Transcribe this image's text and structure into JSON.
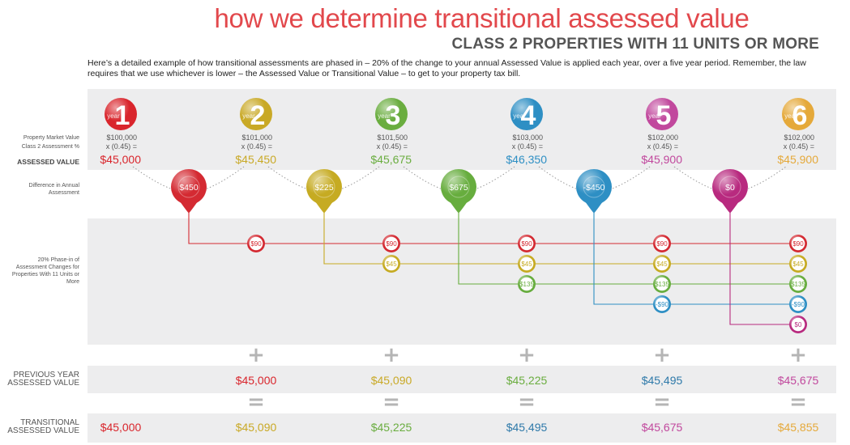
{
  "header": {
    "title": "how we determine transitional assessed value",
    "subtitle": "CLASS 2 PROPERTIES WITH 11 UNITS OR MORE",
    "intro": "Here’s a detailed example of how transitional assessments are phased in – 20% of the change to your annual Assessed Value is applied each year, over a five year period. Remember, the law requires that we use whichever is lower – the Assessed Value or Transitional Value – to get to your property tax bill."
  },
  "row_labels": {
    "market_value": "Property Market Value",
    "assessment_pct": "Class 2 Assessment %",
    "assessed_value": "ASSESSED VALUE",
    "difference": "Difference in Annual Assessment",
    "phase_in": "20% Phase-in of Assessment Changes for Properties With 11 Units or More",
    "previous": "PREVIOUS YEAR ASSESSED VALUE",
    "transitional": "TRANSITIONAL ASSESSED VALUE"
  },
  "year_word": "year",
  "plus_symbol": "+",
  "equals_symbol": "=",
  "colors": [
    "#d9252c",
    "#c9a926",
    "#6aad3f",
    "#2e8fc4",
    "#c1489d",
    "#e5a93a"
  ],
  "years": [
    {
      "num": "1",
      "market": "$100,000",
      "rate": "x (0.45) =",
      "assessed": "$45,000"
    },
    {
      "num": "2",
      "market": "$101,000",
      "rate": "x (0.45) =",
      "assessed": "$45,450"
    },
    {
      "num": "3",
      "market": "$101,500",
      "rate": "x (0.45) =",
      "assessed": "$45,675"
    },
    {
      "num": "4",
      "market": "$103,000",
      "rate": "x (0.45) =",
      "assessed": "$46,350"
    },
    {
      "num": "5",
      "market": "$102,000",
      "rate": "x (0.45) =",
      "assessed": "$45,900"
    },
    {
      "num": "6",
      "market": "$102,000",
      "rate": "x (0.45) =",
      "assessed": "$45,900"
    }
  ],
  "differences": [
    {
      "label": "$450",
      "color": "#d42a32"
    },
    {
      "label": "$225",
      "color": "#c6ab22"
    },
    {
      "label": "$675",
      "color": "#67ad3e"
    },
    {
      "label": "-$450",
      "color": "#2e8fc4"
    },
    {
      "label": "$0",
      "color": "#b82a7f"
    }
  ],
  "phase_rows": [
    {
      "color": "#d42a32",
      "start_year": 2,
      "label": "$90"
    },
    {
      "color": "#c6ab22",
      "start_year": 3,
      "label": "$45"
    },
    {
      "color": "#67ad3e",
      "start_year": 4,
      "label": "$135"
    },
    {
      "color": "#2e8fc4",
      "start_year": 5,
      "label": "-$90"
    },
    {
      "color": "#b82a7f",
      "start_year": 6,
      "label": "$0"
    }
  ],
  "previous_values": [
    {
      "year": 2,
      "value": "$45,000",
      "color": "#d9252c"
    },
    {
      "year": 3,
      "value": "$45,090",
      "color": "#c9a926"
    },
    {
      "year": 4,
      "value": "$45,225",
      "color": "#6aad3f"
    },
    {
      "year": 5,
      "value": "$45,495",
      "color": "#2e79a9"
    },
    {
      "year": 6,
      "value": "$45,675",
      "color": "#c1489d"
    }
  ],
  "transitional_values": [
    {
      "year": 1,
      "value": "$45,000",
      "color": "#d9252c"
    },
    {
      "year": 2,
      "value": "$45,090",
      "color": "#c9a926"
    },
    {
      "year": 3,
      "value": "$45,225",
      "color": "#6aad3f"
    },
    {
      "year": 4,
      "value": "$45,495",
      "color": "#2e79a9"
    },
    {
      "year": 5,
      "value": "$45,675",
      "color": "#c1489d"
    },
    {
      "year": 6,
      "value": "$45,855",
      "color": "#e5a93a"
    }
  ]
}
